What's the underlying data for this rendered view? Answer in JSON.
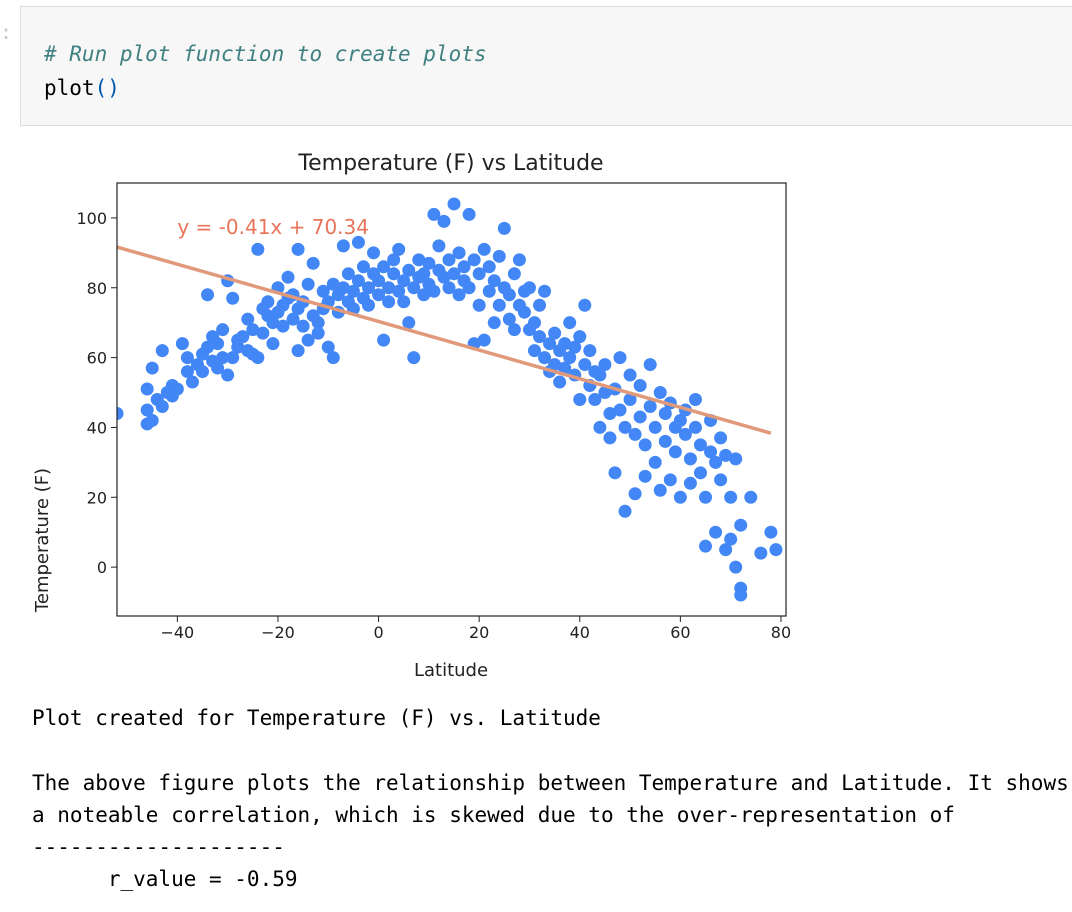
{
  "notebook": {
    "code_comment": "# Run plot function to create plots",
    "code_call": "plot",
    "code_parens": "()",
    "output_lines": [
      "Plot created for Temperature (F) vs. Latitude",
      "The above figure plots the relationship between Temperature and Latitude. It shows",
      "a noteable correlation, which is skewed due to the over-representation of",
      "--------------------",
      "      r_value = -0.59"
    ]
  },
  "colors": {
    "points": "#4287f5",
    "regression_line": "#e0997a",
    "equation_text": "#e8755a",
    "cell_background": "#f7f7f7",
    "comment": "#408080"
  },
  "chart_data": {
    "type": "scatter",
    "title": "Temperature (F) vs Latitude",
    "xlabel": "Latitude",
    "ylabel": "Temperature (F)",
    "xlim": [
      -52,
      81
    ],
    "ylim": [
      -14,
      110
    ],
    "xticks": [
      -40,
      -20,
      0,
      20,
      40,
      60,
      80
    ],
    "yticks": [
      0,
      20,
      40,
      60,
      80,
      100
    ],
    "grid": false,
    "regression": {
      "slope": -0.41,
      "intercept": 70.34,
      "equation": "y = -0.41x + 70.34",
      "x_range": [
        -52,
        78
      ]
    },
    "points": [
      [
        -52,
        44
      ],
      [
        -46,
        41
      ],
      [
        -46,
        45
      ],
      [
        -46,
        51
      ],
      [
        -45,
        57
      ],
      [
        -45,
        42
      ],
      [
        -44,
        48
      ],
      [
        -43,
        46
      ],
      [
        -43,
        62
      ],
      [
        -42,
        50
      ],
      [
        -41,
        52
      ],
      [
        -41,
        49
      ],
      [
        -40,
        51
      ],
      [
        -39,
        64
      ],
      [
        -38,
        56
      ],
      [
        -38,
        60
      ],
      [
        -37,
        53
      ],
      [
        -36,
        58
      ],
      [
        -35,
        61
      ],
      [
        -35,
        56
      ],
      [
        -34,
        63
      ],
      [
        -34,
        78
      ],
      [
        -33,
        59
      ],
      [
        -33,
        66
      ],
      [
        -32,
        57
      ],
      [
        -32,
        64
      ],
      [
        -31,
        60
      ],
      [
        -31,
        68
      ],
      [
        -30,
        55
      ],
      [
        -30,
        82
      ],
      [
        -29,
        60
      ],
      [
        -29,
        77
      ],
      [
        -28,
        63
      ],
      [
        -28,
        65
      ],
      [
        -27,
        66
      ],
      [
        -26,
        62
      ],
      [
        -26,
        71
      ],
      [
        -25,
        61
      ],
      [
        -25,
        68
      ],
      [
        -24,
        60
      ],
      [
        -24,
        91
      ],
      [
        -23,
        74
      ],
      [
        -23,
        67
      ],
      [
        -22,
        72
      ],
      [
        -22,
        76
      ],
      [
        -21,
        70
      ],
      [
        -21,
        64
      ],
      [
        -20,
        73
      ],
      [
        -20,
        80
      ],
      [
        -19,
        69
      ],
      [
        -19,
        75
      ],
      [
        -18,
        77
      ],
      [
        -18,
        83
      ],
      [
        -17,
        71
      ],
      [
        -17,
        78
      ],
      [
        -16,
        62
      ],
      [
        -16,
        74
      ],
      [
        -16,
        91
      ],
      [
        -15,
        69
      ],
      [
        -15,
        76
      ],
      [
        -14,
        81
      ],
      [
        -14,
        65
      ],
      [
        -13,
        72
      ],
      [
        -13,
        87
      ],
      [
        -12,
        70
      ],
      [
        -12,
        67
      ],
      [
        -11,
        74
      ],
      [
        -11,
        79
      ],
      [
        -10,
        63
      ],
      [
        -10,
        76
      ],
      [
        -9,
        81
      ],
      [
        -9,
        60
      ],
      [
        -8,
        78
      ],
      [
        -8,
        73
      ],
      [
        -7,
        80
      ],
      [
        -7,
        92
      ],
      [
        -6,
        76
      ],
      [
        -6,
        84
      ],
      [
        -5,
        79
      ],
      [
        -5,
        74
      ],
      [
        -4,
        82
      ],
      [
        -4,
        93
      ],
      [
        -3,
        77
      ],
      [
        -3,
        86
      ],
      [
        -2,
        80
      ],
      [
        -2,
        75
      ],
      [
        -1,
        84
      ],
      [
        -1,
        90
      ],
      [
        0,
        78
      ],
      [
        0,
        82
      ],
      [
        1,
        86
      ],
      [
        1,
        65
      ],
      [
        2,
        80
      ],
      [
        2,
        76
      ],
      [
        3,
        84
      ],
      [
        3,
        88
      ],
      [
        4,
        79
      ],
      [
        4,
        91
      ],
      [
        5,
        82
      ],
      [
        5,
        76
      ],
      [
        6,
        85
      ],
      [
        6,
        70
      ],
      [
        7,
        80
      ],
      [
        7,
        60
      ],
      [
        8,
        83
      ],
      [
        8,
        88
      ],
      [
        9,
        78
      ],
      [
        9,
        84
      ],
      [
        10,
        81
      ],
      [
        10,
        87
      ],
      [
        11,
        79
      ],
      [
        11,
        101
      ],
      [
        12,
        85
      ],
      [
        12,
        92
      ],
      [
        13,
        83
      ],
      [
        13,
        99
      ],
      [
        14,
        80
      ],
      [
        14,
        88
      ],
      [
        15,
        84
      ],
      [
        15,
        104
      ],
      [
        16,
        78
      ],
      [
        16,
        90
      ],
      [
        17,
        86
      ],
      [
        17,
        82
      ],
      [
        18,
        80
      ],
      [
        18,
        101
      ],
      [
        19,
        88
      ],
      [
        19,
        64
      ],
      [
        20,
        84
      ],
      [
        20,
        75
      ],
      [
        21,
        91
      ],
      [
        21,
        65
      ],
      [
        22,
        79
      ],
      [
        22,
        86
      ],
      [
        23,
        70
      ],
      [
        23,
        82
      ],
      [
        24,
        75
      ],
      [
        24,
        89
      ],
      [
        25,
        80
      ],
      [
        25,
        97
      ],
      [
        26,
        71
      ],
      [
        26,
        78
      ],
      [
        27,
        84
      ],
      [
        27,
        68
      ],
      [
        28,
        75
      ],
      [
        28,
        88
      ],
      [
        29,
        73
      ],
      [
        29,
        79
      ],
      [
        30,
        68
      ],
      [
        30,
        80
      ],
      [
        31,
        70
      ],
      [
        31,
        62
      ],
      [
        32,
        66
      ],
      [
        32,
        75
      ],
      [
        33,
        60
      ],
      [
        33,
        79
      ],
      [
        34,
        64
      ],
      [
        34,
        56
      ],
      [
        35,
        58
      ],
      [
        35,
        67
      ],
      [
        36,
        62
      ],
      [
        36,
        53
      ],
      [
        37,
        57
      ],
      [
        37,
        64
      ],
      [
        38,
        60
      ],
      [
        38,
        70
      ],
      [
        39,
        55
      ],
      [
        39,
        63
      ],
      [
        40,
        48
      ],
      [
        40,
        66
      ],
      [
        41,
        58
      ],
      [
        41,
        75
      ],
      [
        42,
        52
      ],
      [
        42,
        62
      ],
      [
        43,
        56
      ],
      [
        43,
        48
      ],
      [
        44,
        40
      ],
      [
        44,
        55
      ],
      [
        45,
        50
      ],
      [
        45,
        58
      ],
      [
        46,
        44
      ],
      [
        46,
        37
      ],
      [
        47,
        51
      ],
      [
        47,
        27
      ],
      [
        48,
        45
      ],
      [
        48,
        60
      ],
      [
        49,
        40
      ],
      [
        49,
        16
      ],
      [
        50,
        48
      ],
      [
        50,
        55
      ],
      [
        51,
        38
      ],
      [
        51,
        21
      ],
      [
        52,
        43
      ],
      [
        52,
        52
      ],
      [
        53,
        35
      ],
      [
        53,
        26
      ],
      [
        54,
        46
      ],
      [
        54,
        58
      ],
      [
        55,
        30
      ],
      [
        55,
        40
      ],
      [
        56,
        22
      ],
      [
        56,
        50
      ],
      [
        57,
        44
      ],
      [
        57,
        36
      ],
      [
        58,
        25
      ],
      [
        58,
        47
      ],
      [
        59,
        40
      ],
      [
        59,
        33
      ],
      [
        60,
        42
      ],
      [
        60,
        20
      ],
      [
        61,
        38
      ],
      [
        61,
        45
      ],
      [
        62,
        31
      ],
      [
        62,
        24
      ],
      [
        63,
        40
      ],
      [
        63,
        48
      ],
      [
        64,
        27
      ],
      [
        64,
        35
      ],
      [
        65,
        20
      ],
      [
        65,
        6
      ],
      [
        66,
        33
      ],
      [
        66,
        42
      ],
      [
        67,
        10
      ],
      [
        67,
        30
      ],
      [
        68,
        37
      ],
      [
        68,
        25
      ],
      [
        69,
        5
      ],
      [
        69,
        32
      ],
      [
        70,
        20
      ],
      [
        70,
        8
      ],
      [
        71,
        31
      ],
      [
        71,
        0
      ],
      [
        72,
        12
      ],
      [
        72,
        -6
      ],
      [
        72,
        -8
      ],
      [
        74,
        20
      ],
      [
        76,
        4
      ],
      [
        78,
        10
      ],
      [
        79,
        5
      ]
    ]
  }
}
